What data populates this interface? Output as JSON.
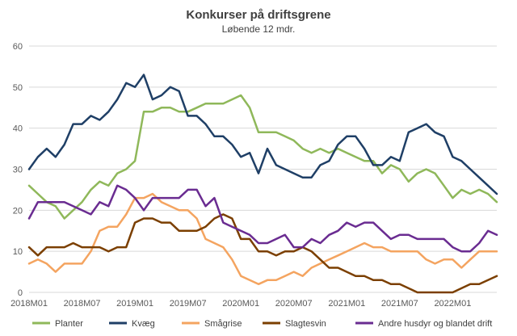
{
  "chart_data": {
    "type": "line",
    "title": "Konkurser på driftsgrene",
    "subtitle": "Løbende 12 mdr.",
    "xlabel": "",
    "ylabel": "",
    "ylim": [
      0,
      60
    ],
    "yticks": [
      0,
      10,
      20,
      30,
      40,
      50,
      60
    ],
    "x_tick_labels": [
      "2018M01",
      "2018M07",
      "2019M01",
      "2019M07",
      "2020M01",
      "2020M07",
      "2021M01",
      "2021M07",
      "2022M01"
    ],
    "x_tick_every": 6,
    "x_start": "2018M01",
    "n_points": 54,
    "grid": true,
    "legend_position": "bottom",
    "series": [
      {
        "name": "Planter",
        "color": "#8fb85a",
        "values": [
          26,
          24,
          22,
          21,
          18,
          20,
          22,
          25,
          27,
          26,
          29,
          30,
          32,
          44,
          44,
          45,
          45,
          44,
          44,
          45,
          46,
          46,
          46,
          47,
          48,
          45,
          39,
          39,
          39,
          38,
          37,
          35,
          34,
          35,
          34,
          35,
          34,
          33,
          32,
          32,
          29,
          31,
          30,
          27,
          29,
          30,
          29,
          26,
          23,
          25,
          24,
          25,
          24,
          22
        ]
      },
      {
        "name": "Kvæg",
        "color": "#1f3f66",
        "values": [
          30,
          33,
          35,
          33,
          36,
          41,
          41,
          43,
          42,
          44,
          47,
          51,
          50,
          53,
          47,
          48,
          50,
          49,
          43,
          43,
          41,
          38,
          38,
          36,
          33,
          34,
          29,
          35,
          31,
          30,
          29,
          28,
          28,
          31,
          32,
          36,
          38,
          38,
          35,
          31,
          31,
          33,
          32,
          39,
          40,
          41,
          39,
          38,
          33,
          32,
          30,
          28,
          26,
          24
        ]
      },
      {
        "name": "Smågrise",
        "color": "#f4a460",
        "values": [
          7,
          8,
          7,
          5,
          7,
          7,
          7,
          10,
          15,
          16,
          16,
          19,
          23,
          23,
          24,
          22,
          21,
          20,
          20,
          18,
          13,
          12,
          11,
          8,
          4,
          3,
          2,
          3,
          3,
          4,
          5,
          4,
          6,
          7,
          8,
          9,
          10,
          11,
          12,
          11,
          11,
          10,
          10,
          10,
          10,
          8,
          7,
          8,
          8,
          6,
          8,
          10,
          10,
          10
        ]
      },
      {
        "name": "Slagtesvin",
        "color": "#7b3f00",
        "values": [
          11,
          9,
          11,
          11,
          11,
          12,
          11,
          11,
          11,
          10,
          11,
          11,
          17,
          18,
          18,
          17,
          17,
          15,
          15,
          15,
          16,
          18,
          19,
          18,
          13,
          13,
          10,
          10,
          9,
          10,
          10,
          11,
          10,
          8,
          6,
          6,
          5,
          4,
          4,
          3,
          3,
          2,
          2,
          1,
          0,
          0,
          0,
          0,
          0,
          1,
          2,
          2,
          3,
          4
        ]
      },
      {
        "name": "Andre husdyr og blandet drift",
        "color": "#6a2c91",
        "values": [
          18,
          22,
          22,
          22,
          22,
          21,
          20,
          19,
          22,
          21,
          26,
          25,
          23,
          20,
          23,
          23,
          23,
          23,
          25,
          25,
          21,
          23,
          17,
          16,
          15,
          14,
          12,
          12,
          13,
          14,
          11,
          11,
          13,
          12,
          14,
          15,
          17,
          16,
          17,
          17,
          15,
          13,
          14,
          14,
          13,
          13,
          13,
          13,
          11,
          10,
          10,
          12,
          15,
          14
        ]
      }
    ]
  }
}
